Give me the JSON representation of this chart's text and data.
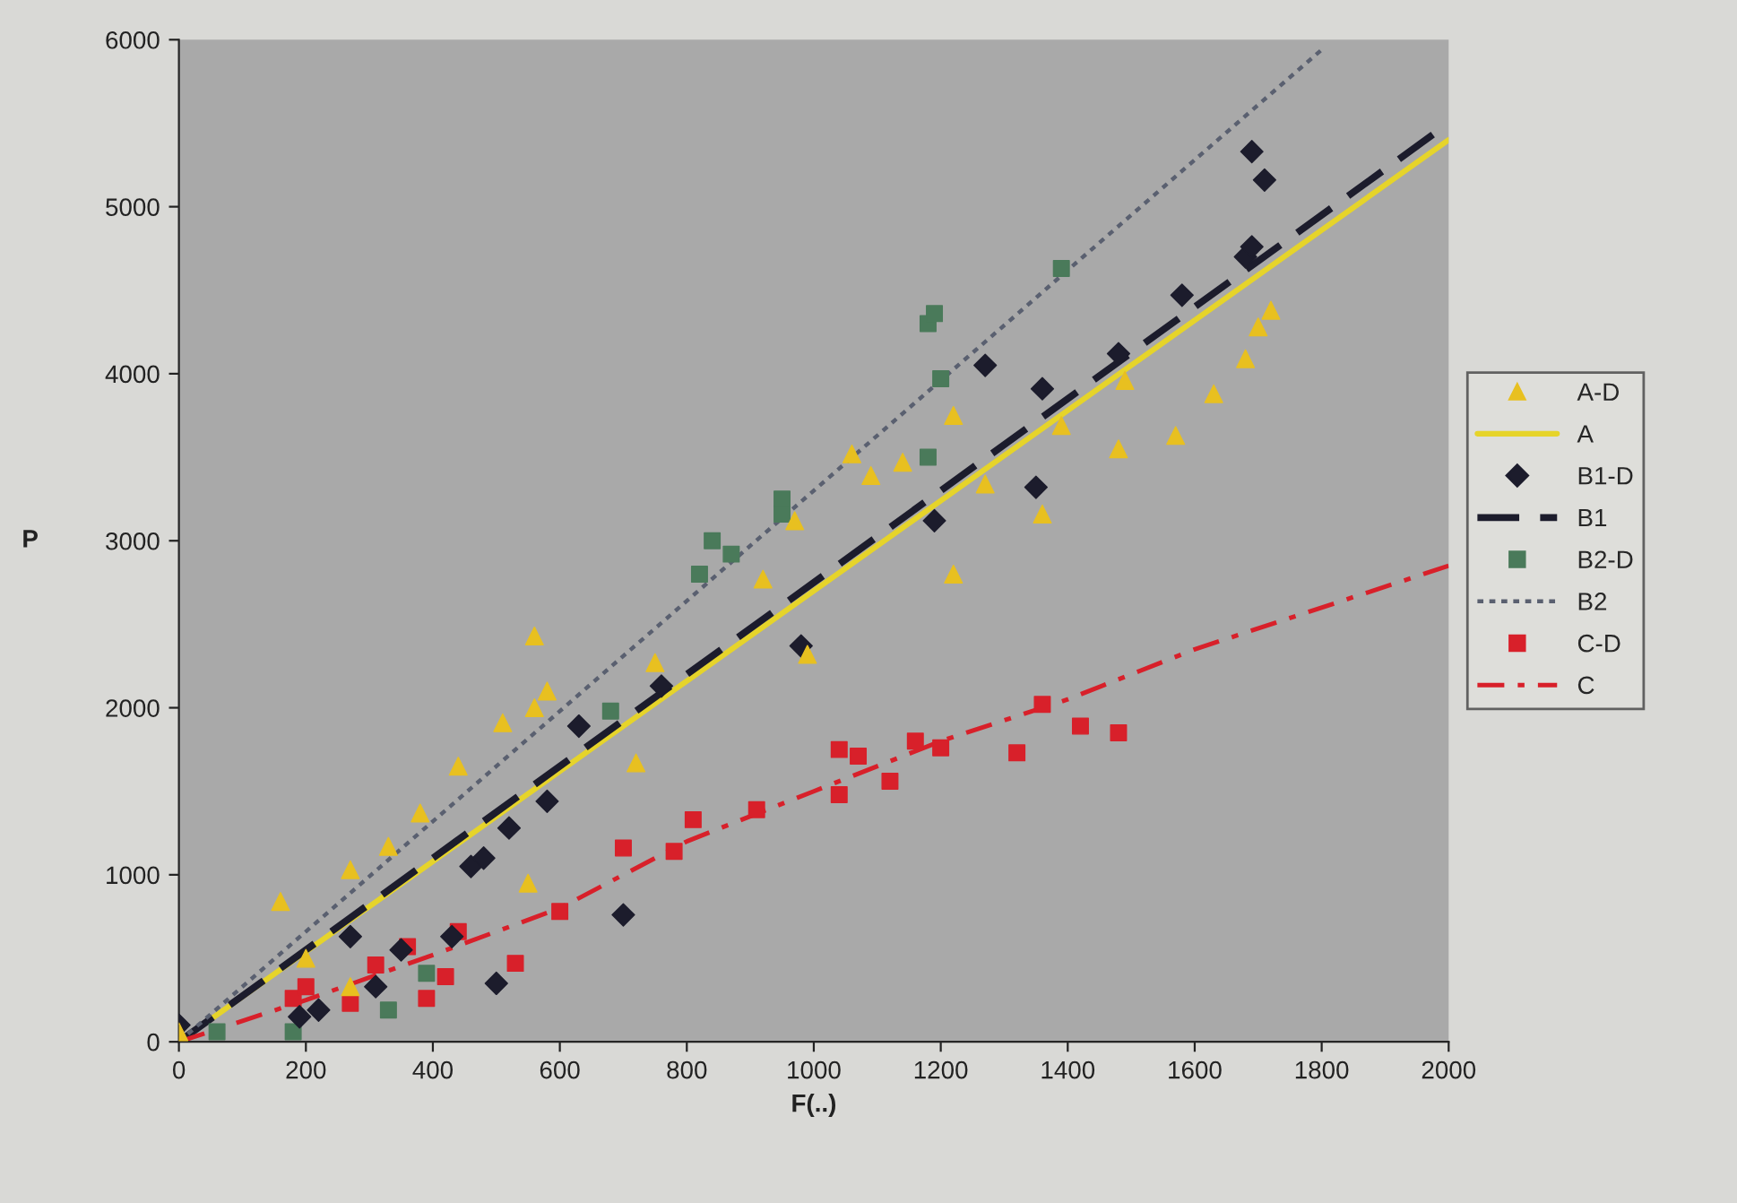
{
  "chart_data": {
    "type": "scatter",
    "xlabel": "F(..)",
    "ylabel": "P",
    "xlim": [
      0,
      2000
    ],
    "ylim": [
      0,
      6000
    ],
    "xticks": [
      0,
      200,
      400,
      600,
      800,
      1000,
      1200,
      1400,
      1600,
      1800,
      2000
    ],
    "yticks": [
      0,
      1000,
      2000,
      3000,
      4000,
      5000,
      6000
    ],
    "grid": false,
    "legend": "right",
    "series": [
      {
        "name": "A-D",
        "marker": "triangle",
        "color": "#e8c020",
        "x": [
          0,
          160,
          200,
          270,
          270,
          330,
          380,
          440,
          510,
          550,
          560,
          560,
          580,
          720,
          750,
          920,
          970,
          990,
          1060,
          1090,
          1140,
          1220,
          1220,
          1270,
          1360,
          1390,
          1480,
          1490,
          1570,
          1630,
          1680,
          1700,
          1720
        ],
        "values": [
          60,
          840,
          500,
          330,
          1030,
          1170,
          1370,
          1650,
          1910,
          950,
          2000,
          2430,
          2100,
          1670,
          2270,
          2770,
          3120,
          2320,
          3520,
          3390,
          3470,
          2800,
          3750,
          3340,
          3160,
          3690,
          3550,
          3960,
          3630,
          3880,
          4090,
          4280,
          4380
        ]
      },
      {
        "name": "A",
        "type": "line",
        "line_style": "solid",
        "marker": "none",
        "color": "#e6d42a",
        "x": [
          0,
          2000
        ],
        "values": [
          0,
          5400
        ]
      },
      {
        "name": "B1-D",
        "marker": "diamond",
        "color": "#1c1c2c",
        "x": [
          0,
          190,
          220,
          270,
          310,
          350,
          430,
          460,
          480,
          500,
          520,
          580,
          630,
          700,
          760,
          980,
          1190,
          1270,
          1350,
          1360,
          1480,
          1580,
          1680,
          1690,
          1690,
          1710
        ],
        "values": [
          100,
          150,
          190,
          630,
          330,
          550,
          630,
          1050,
          1100,
          350,
          1280,
          1440,
          1890,
          760,
          2130,
          2370,
          3120,
          4050,
          3320,
          3910,
          4120,
          4470,
          4700,
          4760,
          5330,
          5160
        ]
      },
      {
        "name": "B1",
        "type": "line",
        "line_style": "dashed",
        "marker": "none",
        "color": "#1c1c2c",
        "x": [
          0,
          2000
        ],
        "values": [
          0,
          5500
        ]
      },
      {
        "name": "B2-D",
        "marker": "square",
        "color": "#4a7a5a",
        "x": [
          60,
          180,
          330,
          390,
          680,
          820,
          840,
          870,
          950,
          950,
          1180,
          1180,
          1190,
          1200,
          1390
        ],
        "values": [
          60,
          60,
          190,
          410,
          1980,
          2800,
          3000,
          2920,
          3250,
          3160,
          3500,
          4300,
          4360,
          3970,
          4630
        ]
      },
      {
        "name": "B2",
        "type": "line",
        "line_style": "dotted",
        "marker": "none",
        "color": "#5a6070",
        "x": [
          0,
          1800
        ],
        "values": [
          0,
          5940
        ]
      },
      {
        "name": "C-D",
        "marker": "square",
        "color": "#d8202a",
        "x": [
          180,
          200,
          270,
          310,
          360,
          390,
          420,
          440,
          530,
          600,
          700,
          780,
          810,
          910,
          1040,
          1040,
          1070,
          1120,
          1160,
          1200,
          1320,
          1360,
          1420,
          1480
        ],
        "values": [
          260,
          330,
          230,
          460,
          570,
          260,
          390,
          660,
          470,
          780,
          1160,
          1140,
          1330,
          1390,
          1480,
          1750,
          1710,
          1560,
          1800,
          1760,
          1730,
          2020,
          1890,
          1850
        ]
      },
      {
        "name": "C",
        "type": "line",
        "line_style": "dashdot",
        "marker": "none",
        "color": "#d8202a",
        "x": [
          0,
          200,
          400,
          600,
          800,
          1000,
          1200,
          1400,
          1600,
          2000
        ],
        "values": [
          0,
          250,
          520,
          800,
          1200,
          1500,
          1800,
          2050,
          2350,
          2850
        ]
      }
    ]
  }
}
